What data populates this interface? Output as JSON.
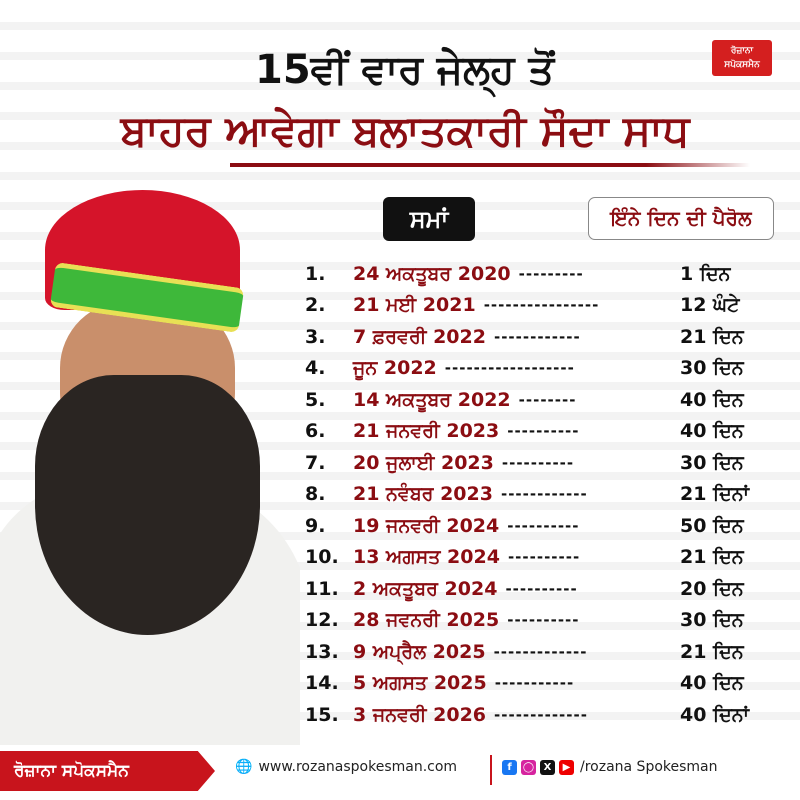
{
  "watermark": "ਰੋਜ਼ਾਨਾ ਸਪੋਕਸਮੈਨ",
  "logo": {
    "line1": "ਰੋਜ਼ਾਨਾ",
    "line2": "ਸਪੋਕਸਮੈਨ"
  },
  "title": {
    "line1": "15ਵੀਂ ਵਾਰ ਜੇਲ੍ਹ ਤੋਂ",
    "line2": "ਬਾਹਰ ਆਵੇਗਾ ਬਲਾਤਕਾਰੀ ਸੌਦਾ ਸਾਧ"
  },
  "headers": {
    "time": "ਸਮਾਂ",
    "parole": "ਇੰਨੇ ਦਿਨ ਦੀ ਪੈਰੋਲ"
  },
  "colors": {
    "accent": "#8b0d12",
    "brand_red": "#c8141c"
  },
  "rows": [
    {
      "num": "1.",
      "date": "24 ਅਕਤੂਬਰ 2020",
      "dash": "---------",
      "dur": "1 ਦਿਨ"
    },
    {
      "num": "2.",
      "date": "21 ਮਈ 2021",
      "dash": "----------------",
      "dur": "12 ਘੰਟੇ"
    },
    {
      "num": "3.",
      "date": "7 ਫ਼ਰਵਰੀ 2022",
      "dash": "------------",
      "dur": "21 ਦਿਨ"
    },
    {
      "num": "4.",
      "date": "ਜੂਨ 2022",
      "dash": "------------------",
      "dur": "30 ਦਿਨ"
    },
    {
      "num": "5.",
      "date": "14 ਅਕਤੂਬਰ 2022",
      "dash": "--------",
      "dur": "40 ਦਿਨ"
    },
    {
      "num": "6.",
      "date": "21 ਜਨਵਰੀ 2023",
      "dash": "----------",
      "dur": "40 ਦਿਨ"
    },
    {
      "num": "7.",
      "date": "20 ਜੁਲਾਈ 2023",
      "dash": "----------",
      "dur": "30 ਦਿਨ"
    },
    {
      "num": "8.",
      "date": "21 ਨਵੰਬਰ 2023",
      "dash": "------------",
      "dur": "21 ਦਿਨਾਂ"
    },
    {
      "num": "9.",
      "date": "19 ਜਨਵਰੀ 2024",
      "dash": "----------",
      "dur": "50 ਦਿਨ"
    },
    {
      "num": "10.",
      "date": "13 ਅਗਸਤ 2024",
      "dash": "----------",
      "dur": "21 ਦਿਨ"
    },
    {
      "num": "11.",
      "date": "2 ਅਕਤੂਬਰ 2024",
      "dash": "----------",
      "dur": "20 ਦਿਨ"
    },
    {
      "num": "12.",
      "date": "28 ਜਵਨਰੀ 2025",
      "dash": "----------",
      "dur": "30 ਦਿਨ"
    },
    {
      "num": "13.",
      "date": "9 ਅਪ੍ਰੈਲ 2025",
      "dash": "-------------",
      "dur": "21 ਦਿਨ"
    },
    {
      "num": "14.",
      "date": "5 ਅਗਸਤ 2025",
      "dash": "-----------",
      "dur": "40 ਦਿਨ"
    },
    {
      "num": "15.",
      "date": "3 ਜਨਵਰੀ 2026",
      "dash": "-------------",
      "dur": "40 ਦਿਨਾਂ"
    }
  ],
  "footer": {
    "brand": "ਰੋਜ਼ਾਨਾ ਸਪੋਕਸਮੈਨ",
    "website": "www.rozanaspokesman.com",
    "social_icons": [
      "facebook-icon",
      "instagram-icon",
      "x-icon",
      "youtube-icon"
    ],
    "handle": "/rozana Spokesman"
  }
}
